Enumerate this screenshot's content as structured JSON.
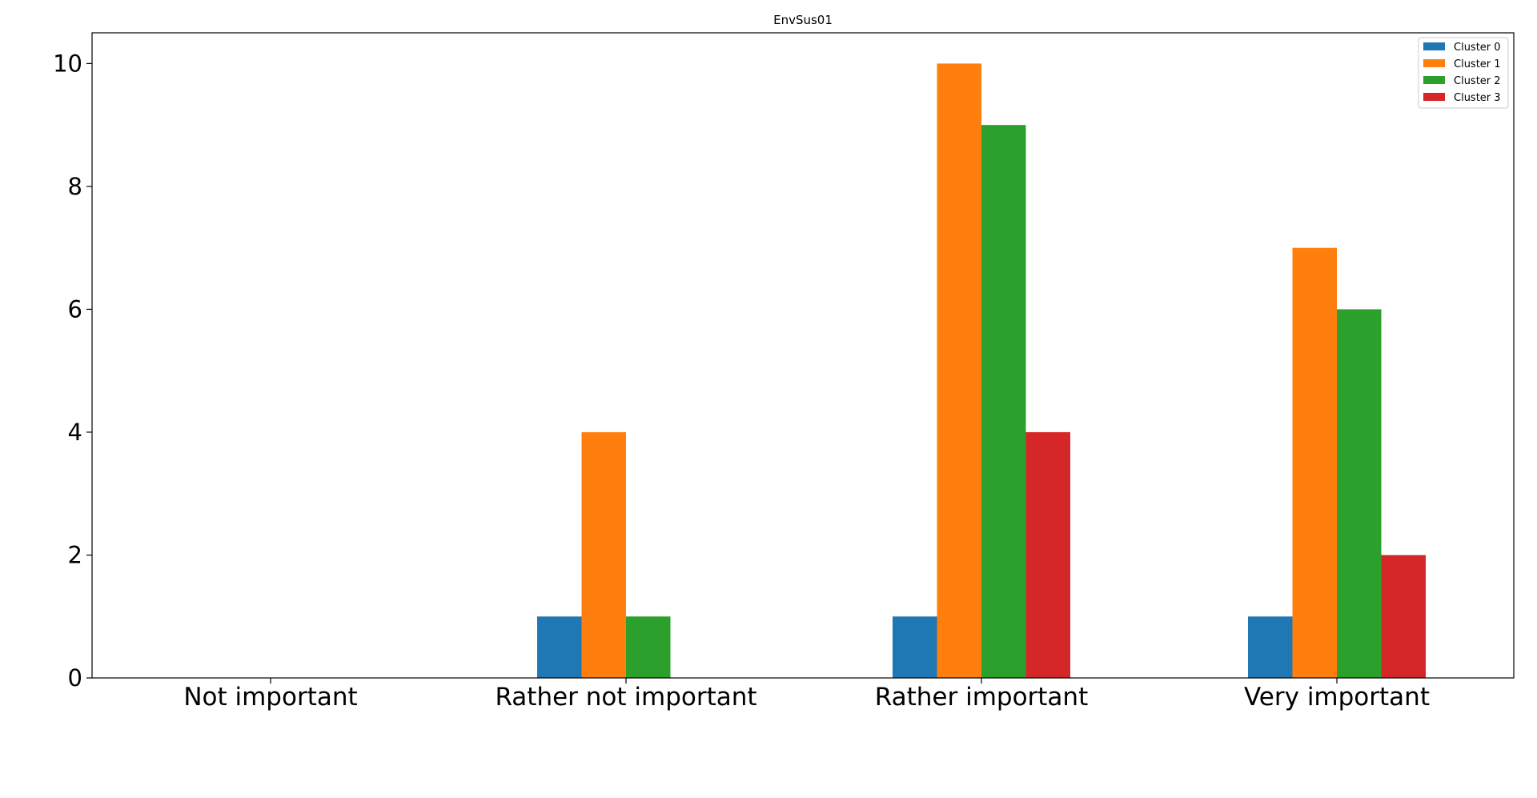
{
  "chart_data": {
    "type": "bar",
    "title": "EnvSus01",
    "xlabel": "",
    "ylabel": "",
    "categories": [
      "Not important",
      "Rather not important",
      "Rather important",
      "Very important"
    ],
    "series": [
      {
        "name": "Cluster 0",
        "color": "#1f77b4",
        "values": [
          0,
          1,
          1,
          1
        ]
      },
      {
        "name": "Cluster 1",
        "color": "#ff7f0e",
        "values": [
          0,
          4,
          10,
          7
        ]
      },
      {
        "name": "Cluster 2",
        "color": "#2ca02c",
        "values": [
          0,
          1,
          9,
          6
        ]
      },
      {
        "name": "Cluster 3",
        "color": "#d62728",
        "values": [
          0,
          0,
          4,
          2
        ]
      }
    ],
    "ylim": [
      0,
      10.5
    ],
    "yticks": [
      0,
      2,
      4,
      6,
      8,
      10
    ],
    "grid": false,
    "legend_position": "top-right"
  }
}
